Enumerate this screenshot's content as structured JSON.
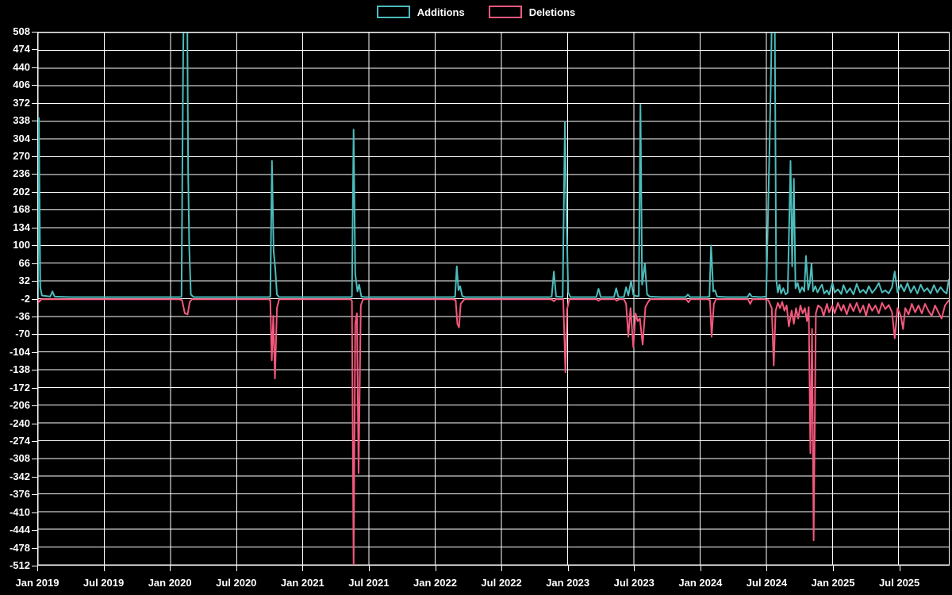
{
  "chart_data": {
    "type": "line",
    "title": "",
    "xlabel": "",
    "ylabel": "",
    "x_unit": "months since Jan 2019 (weekly series)",
    "xlim": [
      0,
      82.55
    ],
    "ylim": [
      -512,
      508
    ],
    "grid": true,
    "background_color": "#000000",
    "grid_color": "#ffffff",
    "text_color": "#ffffff",
    "legend_position": "top-center",
    "ytick_values": [
      508,
      474,
      440,
      406,
      372,
      338,
      304,
      270,
      236,
      202,
      168,
      134,
      100,
      66,
      32,
      -2,
      -36,
      -70,
      -104,
      -138,
      -172,
      -206,
      -240,
      -274,
      -308,
      -342,
      -376,
      -410,
      -444,
      -478,
      -512
    ],
    "xtick_months": [
      0,
      6,
      12,
      18,
      24,
      30,
      36,
      42,
      48,
      54,
      60,
      66,
      72,
      78
    ],
    "xtick_labels": [
      "Jan 2019",
      "Jul 2019",
      "Jan 2020",
      "Jul 2020",
      "Jan 2021",
      "Jul 2021",
      "Jan 2022",
      "Jul 2022",
      "Jan 2023",
      "Jul 2023",
      "Jan 2024",
      "Jul 2024",
      "Jan 2025",
      "Jul 2025"
    ],
    "series": [
      {
        "name": "Deletions",
        "color": "#f4587c",
        "points": [
          [
            0,
            -3
          ],
          [
            0.1,
            -8
          ],
          [
            0.3,
            -3
          ],
          [
            3,
            -3
          ],
          [
            6,
            -3
          ],
          [
            9,
            -3
          ],
          [
            12.8,
            -3
          ],
          [
            13.05,
            -5
          ],
          [
            13.3,
            -30
          ],
          [
            13.55,
            -32
          ],
          [
            13.75,
            -8
          ],
          [
            13.95,
            -3
          ],
          [
            16,
            -3
          ],
          [
            20.9,
            -3
          ],
          [
            21.05,
            -5
          ],
          [
            21.18,
            -120
          ],
          [
            21.32,
            -35
          ],
          [
            21.47,
            -155
          ],
          [
            21.65,
            -20
          ],
          [
            21.85,
            -3
          ],
          [
            24,
            -3
          ],
          [
            28.3,
            -3
          ],
          [
            28.45,
            -6
          ],
          [
            28.6,
            -512
          ],
          [
            28.75,
            -50
          ],
          [
            28.9,
            -30
          ],
          [
            29.05,
            -336
          ],
          [
            29.25,
            -15
          ],
          [
            29.45,
            -3
          ],
          [
            32,
            -3
          ],
          [
            37.6,
            -3
          ],
          [
            37.85,
            -5
          ],
          [
            38.0,
            -50
          ],
          [
            38.15,
            -57
          ],
          [
            38.3,
            -12
          ],
          [
            38.45,
            -8
          ],
          [
            38.65,
            -3
          ],
          [
            41,
            -3
          ],
          [
            46.3,
            -3
          ],
          [
            46.6,
            -4
          ],
          [
            46.75,
            -7
          ],
          [
            46.95,
            -3
          ],
          [
            47.6,
            -3
          ],
          [
            47.8,
            -143
          ],
          [
            47.95,
            -22
          ],
          [
            48.15,
            -3
          ],
          [
            50.6,
            -3
          ],
          [
            50.8,
            -6
          ],
          [
            51.0,
            -3
          ],
          [
            52.3,
            -3
          ],
          [
            52.45,
            -6
          ],
          [
            52.65,
            -3
          ],
          [
            53.1,
            -3
          ],
          [
            53.3,
            -12
          ],
          [
            53.5,
            -75
          ],
          [
            53.7,
            -20
          ],
          [
            53.95,
            -95
          ],
          [
            54.15,
            -30
          ],
          [
            54.35,
            -45
          ],
          [
            54.55,
            -40
          ],
          [
            54.8,
            -90
          ],
          [
            55.05,
            -18
          ],
          [
            55.3,
            -8
          ],
          [
            55.5,
            -3
          ],
          [
            56.5,
            -3
          ],
          [
            58.75,
            -3
          ],
          [
            58.95,
            -9
          ],
          [
            59.15,
            -3
          ],
          [
            60.65,
            -3
          ],
          [
            60.9,
            -5
          ],
          [
            61.05,
            -75
          ],
          [
            61.25,
            -12
          ],
          [
            61.45,
            -3
          ],
          [
            62.5,
            -3
          ],
          [
            64.35,
            -3
          ],
          [
            64.55,
            -12
          ],
          [
            64.75,
            -3
          ],
          [
            65.8,
            -3
          ],
          [
            66.2,
            -5
          ],
          [
            66.5,
            -20
          ],
          [
            66.68,
            -130
          ],
          [
            66.85,
            -25
          ],
          [
            67.05,
            -10
          ],
          [
            67.25,
            -20
          ],
          [
            67.45,
            -8
          ],
          [
            67.65,
            -25
          ],
          [
            67.85,
            -15
          ],
          [
            68.05,
            -55
          ],
          [
            68.3,
            -25
          ],
          [
            68.5,
            -50
          ],
          [
            68.7,
            -20
          ],
          [
            68.9,
            -40
          ],
          [
            69.1,
            -15
          ],
          [
            69.3,
            -30
          ],
          [
            69.5,
            -20
          ],
          [
            69.7,
            -45
          ],
          [
            69.85,
            -18
          ],
          [
            70.0,
            -298
          ],
          [
            70.15,
            -60
          ],
          [
            70.3,
            -465
          ],
          [
            70.5,
            -30
          ],
          [
            70.7,
            -15
          ],
          [
            71.0,
            -20
          ],
          [
            71.2,
            -35
          ],
          [
            71.5,
            -12
          ],
          [
            71.7,
            -28
          ],
          [
            72.0,
            -15
          ],
          [
            72.2,
            -30
          ],
          [
            72.5,
            -10
          ],
          [
            72.8,
            -25
          ],
          [
            73.0,
            -14
          ],
          [
            73.3,
            -32
          ],
          [
            73.6,
            -12
          ],
          [
            73.9,
            -26
          ],
          [
            74.2,
            -10
          ],
          [
            74.5,
            -28
          ],
          [
            74.8,
            -15
          ],
          [
            75.05,
            -35
          ],
          [
            75.3,
            -12
          ],
          [
            75.6,
            -25
          ],
          [
            75.9,
            -15
          ],
          [
            76.2,
            -30
          ],
          [
            76.5,
            -10
          ],
          [
            76.8,
            -22
          ],
          [
            77.1,
            -14
          ],
          [
            77.4,
            -28
          ],
          [
            77.65,
            -78
          ],
          [
            77.9,
            -20
          ],
          [
            78.2,
            -35
          ],
          [
            78.4,
            -60
          ],
          [
            78.6,
            -20
          ],
          [
            78.9,
            -32
          ],
          [
            79.2,
            -12
          ],
          [
            79.5,
            -28
          ],
          [
            79.8,
            -15
          ],
          [
            80.1,
            -30
          ],
          [
            80.4,
            -12
          ],
          [
            80.7,
            -25
          ],
          [
            81.0,
            -35
          ],
          [
            81.3,
            -15
          ],
          [
            81.6,
            -28
          ],
          [
            81.9,
            -40
          ],
          [
            82.2,
            -15
          ],
          [
            82.55,
            -5
          ]
        ]
      },
      {
        "name": "Additions",
        "color": "#4cbcbc",
        "points": [
          [
            0,
            0
          ],
          [
            0.07,
            344
          ],
          [
            0.2,
            20
          ],
          [
            0.35,
            4
          ],
          [
            1.1,
            2
          ],
          [
            1.3,
            12
          ],
          [
            1.5,
            2
          ],
          [
            3,
            1
          ],
          [
            6,
            1
          ],
          [
            9,
            1
          ],
          [
            12,
            1
          ],
          [
            12.8,
            1
          ],
          [
            13.0,
            2
          ],
          [
            13.15,
            466
          ],
          [
            13.25,
            620
          ],
          [
            13.5,
            620
          ],
          [
            13.6,
            240
          ],
          [
            13.7,
            95
          ],
          [
            13.85,
            6
          ],
          [
            14.1,
            1
          ],
          [
            16,
            1
          ],
          [
            19,
            1
          ],
          [
            20.9,
            1
          ],
          [
            21.05,
            2
          ],
          [
            21.2,
            262
          ],
          [
            21.35,
            90
          ],
          [
            21.5,
            55
          ],
          [
            21.65,
            6
          ],
          [
            21.85,
            1
          ],
          [
            24,
            1
          ],
          [
            27,
            1
          ],
          [
            28.3,
            1
          ],
          [
            28.45,
            2
          ],
          [
            28.6,
            322
          ],
          [
            28.75,
            45
          ],
          [
            28.95,
            12
          ],
          [
            29.1,
            25
          ],
          [
            29.3,
            2
          ],
          [
            29.6,
            1
          ],
          [
            32,
            1
          ],
          [
            35,
            1
          ],
          [
            37.6,
            1
          ],
          [
            37.8,
            2
          ],
          [
            37.95,
            60
          ],
          [
            38.1,
            14
          ],
          [
            38.25,
            22
          ],
          [
            38.45,
            3
          ],
          [
            38.7,
            1
          ],
          [
            41,
            1
          ],
          [
            44,
            1
          ],
          [
            46.3,
            1
          ],
          [
            46.55,
            2
          ],
          [
            46.75,
            50
          ],
          [
            46.95,
            2
          ],
          [
            47.55,
            1
          ],
          [
            47.75,
            337
          ],
          [
            47.9,
            150
          ],
          [
            48.05,
            10
          ],
          [
            48.25,
            1
          ],
          [
            49.5,
            1
          ],
          [
            50.6,
            1
          ],
          [
            50.8,
            17
          ],
          [
            51.0,
            1
          ],
          [
            52.2,
            1
          ],
          [
            52.4,
            18
          ],
          [
            52.6,
            1
          ],
          [
            53.1,
            1
          ],
          [
            53.3,
            20
          ],
          [
            53.5,
            4
          ],
          [
            53.75,
            32
          ],
          [
            53.95,
            6
          ],
          [
            54.2,
            3
          ],
          [
            54.45,
            3
          ],
          [
            54.6,
            370
          ],
          [
            54.75,
            25
          ],
          [
            55.0,
            65
          ],
          [
            55.2,
            6
          ],
          [
            55.45,
            2
          ],
          [
            56.5,
            1
          ],
          [
            58.7,
            1
          ],
          [
            58.9,
            6
          ],
          [
            59.1,
            1
          ],
          [
            60.6,
            1
          ],
          [
            60.85,
            2
          ],
          [
            61.0,
            100
          ],
          [
            61.2,
            12
          ],
          [
            61.35,
            14
          ],
          [
            61.55,
            2
          ],
          [
            62.5,
            1
          ],
          [
            64.3,
            1
          ],
          [
            64.5,
            8
          ],
          [
            64.7,
            2
          ],
          [
            65.5,
            1
          ],
          [
            66.0,
            2
          ],
          [
            66.3,
            290
          ],
          [
            66.45,
            450
          ],
          [
            66.55,
            620
          ],
          [
            66.75,
            620
          ],
          [
            66.9,
            35
          ],
          [
            67.05,
            10
          ],
          [
            67.2,
            25
          ],
          [
            67.35,
            8
          ],
          [
            67.55,
            18
          ],
          [
            67.75,
            6
          ],
          [
            67.95,
            10
          ],
          [
            68.2,
            262
          ],
          [
            68.35,
            60
          ],
          [
            68.5,
            228
          ],
          [
            68.65,
            18
          ],
          [
            68.85,
            28
          ],
          [
            69.05,
            10
          ],
          [
            69.25,
            20
          ],
          [
            69.45,
            12
          ],
          [
            69.6,
            80
          ],
          [
            69.8,
            15
          ],
          [
            69.95,
            28
          ],
          [
            70.1,
            65
          ],
          [
            70.25,
            12
          ],
          [
            70.45,
            22
          ],
          [
            70.65,
            10
          ],
          [
            70.85,
            18
          ],
          [
            71.05,
            25
          ],
          [
            71.25,
            8
          ],
          [
            71.5,
            14
          ],
          [
            71.7,
            6
          ],
          [
            72.0,
            28
          ],
          [
            72.2,
            10
          ],
          [
            72.5,
            16
          ],
          [
            72.8,
            7
          ],
          [
            73.0,
            24
          ],
          [
            73.3,
            9
          ],
          [
            73.6,
            18
          ],
          [
            73.9,
            6
          ],
          [
            74.2,
            26
          ],
          [
            74.5,
            10
          ],
          [
            74.8,
            15
          ],
          [
            75.05,
            8
          ],
          [
            75.3,
            22
          ],
          [
            75.6,
            9
          ],
          [
            75.9,
            17
          ],
          [
            76.2,
            28
          ],
          [
            76.5,
            10
          ],
          [
            76.8,
            14
          ],
          [
            77.1,
            8
          ],
          [
            77.4,
            20
          ],
          [
            77.65,
            50
          ],
          [
            77.9,
            10
          ],
          [
            78.2,
            25
          ],
          [
            78.5,
            12
          ],
          [
            78.8,
            28
          ],
          [
            79.1,
            10
          ],
          [
            79.4,
            22
          ],
          [
            79.7,
            8
          ],
          [
            80.0,
            25
          ],
          [
            80.3,
            12
          ],
          [
            80.6,
            18
          ],
          [
            80.9,
            8
          ],
          [
            81.2,
            24
          ],
          [
            81.5,
            10
          ],
          [
            81.8,
            20
          ],
          [
            82.1,
            12
          ],
          [
            82.35,
            8
          ],
          [
            82.55,
            35
          ]
        ]
      }
    ],
    "legend_order": [
      "Additions",
      "Deletions"
    ]
  }
}
